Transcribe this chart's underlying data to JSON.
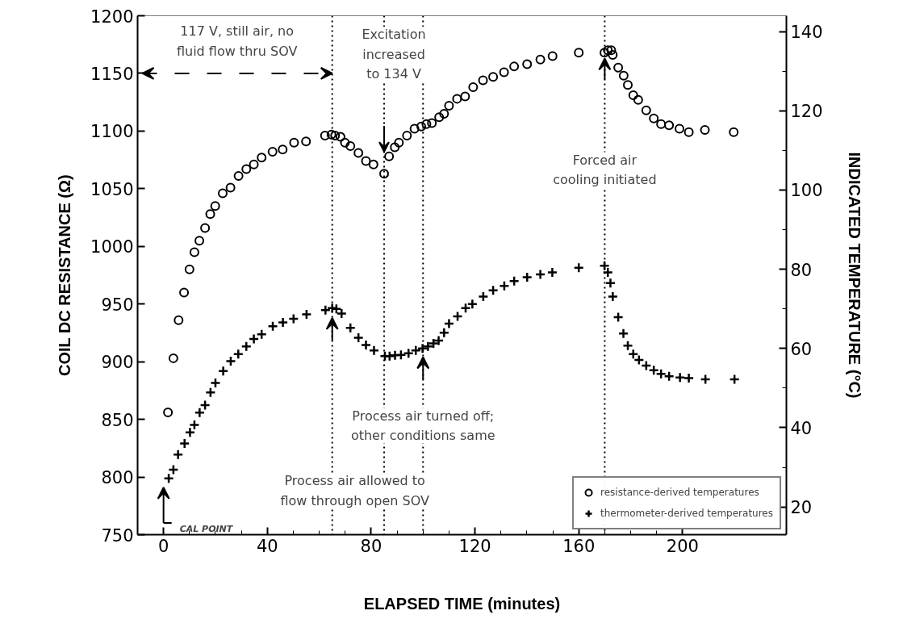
{
  "chart_data": {
    "type": "scatter",
    "xlabel": "ELAPSED TIME (minutes)",
    "ylabel": "COIL DC RESISTANCE (Ω)",
    "y2label": "INDICATED TEMPERATURE (°C)",
    "xlim": [
      -10,
      240
    ],
    "xticks": [
      0,
      40,
      80,
      120,
      160,
      200
    ],
    "ylim": [
      750,
      1200
    ],
    "yticks": [
      750,
      800,
      850,
      900,
      950,
      1000,
      1050,
      1100,
      1150,
      1200
    ],
    "y2lim": [
      13,
      144
    ],
    "y2ticks": [
      20,
      40,
      60,
      80,
      100,
      120,
      140
    ],
    "grid": false,
    "legend": "bottom right",
    "series": [
      {
        "name": "resistance-derived temperatures",
        "color": "#000000",
        "marker": "circle",
        "x": [
          1.7,
          3.8,
          5.8,
          7.9,
          10,
          11.9,
          13.8,
          16,
          18,
          19.9,
          22.8,
          25.8,
          28.9,
          31.9,
          34.8,
          37.8,
          42,
          45.9,
          50.3,
          54.9,
          62.2,
          64.7,
          66.1,
          68.2,
          69.9,
          72,
          75.1,
          78,
          80.9,
          85,
          86.9,
          89.1,
          90.7,
          93.8,
          96.7,
          99.3,
          101.3,
          103.4,
          106.2,
          108.1,
          110,
          113.1,
          116.2,
          119.3,
          123.1,
          127,
          131.2,
          135.1,
          140.1,
          145.2,
          149.9,
          160,
          169.9,
          171.2,
          172.5,
          173.1,
          175.2,
          177.3,
          178.9,
          181,
          182.9,
          186,
          188.9,
          191.7,
          194.8,
          198.8,
          202.4,
          208.6,
          219.7
        ],
        "values": [
          856,
          903,
          936,
          960,
          980,
          995,
          1005,
          1016,
          1028,
          1035,
          1046,
          1051,
          1061,
          1067,
          1071,
          1077,
          1082,
          1084,
          1090,
          1091,
          1096,
          1097,
          1096,
          1095,
          1090,
          1087,
          1081,
          1074,
          1071,
          1063,
          1078,
          1086,
          1090,
          1096,
          1102,
          1104,
          1106,
          1107,
          1112,
          1115,
          1122,
          1128,
          1130,
          1138,
          1144,
          1147,
          1151,
          1156,
          1158,
          1162,
          1165,
          1168,
          1168,
          1170,
          1170,
          1166,
          1155,
          1148,
          1140,
          1131,
          1127,
          1118,
          1111,
          1106,
          1105,
          1102,
          1099,
          1101,
          1099
        ]
      },
      {
        "name": "thermometer-derived temperatures",
        "color": "#000000",
        "marker": "cross",
        "axis": "y2",
        "x": [
          2,
          3.8,
          5.6,
          8.1,
          10.2,
          11.9,
          13.9,
          16,
          18.1,
          20,
          23,
          25.9,
          28.8,
          31.9,
          34.8,
          37.8,
          42.1,
          46,
          50.1,
          55.1,
          62.4,
          65,
          66.6,
          68.6,
          72,
          75.1,
          78,
          81.1,
          85.3,
          87.1,
          89.2,
          91.5,
          94.4,
          97.2,
          99.8,
          101.9,
          104,
          106,
          108.1,
          110,
          113.3,
          116.4,
          119,
          123.2,
          127,
          131.3,
          135.1,
          140.1,
          145.2,
          149.8,
          160,
          169.9,
          171.2,
          172.2,
          173.1,
          175.2,
          177.2,
          178.9,
          181,
          183.2,
          186,
          188.9,
          191.7,
          194.8,
          199,
          202.4,
          208.8,
          220
        ],
        "values": [
          27.2,
          29.4,
          33.2,
          36,
          38.8,
          40.7,
          43.8,
          45.7,
          48.9,
          51.3,
          54.3,
          56.8,
          58.6,
          60.5,
          62.4,
          63.6,
          65.6,
          66.6,
          67.5,
          68.6,
          69.7,
          70.2,
          70,
          68.8,
          65.2,
          62.7,
          60.9,
          59.5,
          58.1,
          58.1,
          58.3,
          58.4,
          58.8,
          59.5,
          60,
          60.5,
          61.3,
          62,
          64,
          66.3,
          68.1,
          70.2,
          71.2,
          73.1,
          74.7,
          75.8,
          77,
          78,
          78.7,
          79.2,
          80.4,
          80.9,
          79.2,
          76.5,
          73.1,
          67.9,
          63.8,
          60.7,
          58.6,
          57.1,
          55.7,
          54.5,
          53.6,
          53,
          52.7,
          52.5,
          52.2,
          52.2
        ]
      }
    ],
    "ref_lines": [
      {
        "axis": "x",
        "value": 65,
        "color": "#000000",
        "line_style": "dotted"
      },
      {
        "axis": "x",
        "value": 85,
        "color": "#000000",
        "line_style": "dotted"
      },
      {
        "axis": "x",
        "value": 100,
        "color": "#000000",
        "line_style": "dotted"
      },
      {
        "axis": "x",
        "value": 170,
        "color": "#000000",
        "line_style": "dotted"
      }
    ],
    "annotations": [
      {
        "text": "117 V, still air, no\nfluid flow thru SOV",
        "x": 65,
        "y": 1150
      },
      "Excitation\nincreased\nto 134 V",
      "Process air allowed to\nflow through open SOV",
      "Process air turned off;\nother conditions same",
      "Forced air\ncooling initiated",
      "CAL POINT"
    ]
  }
}
